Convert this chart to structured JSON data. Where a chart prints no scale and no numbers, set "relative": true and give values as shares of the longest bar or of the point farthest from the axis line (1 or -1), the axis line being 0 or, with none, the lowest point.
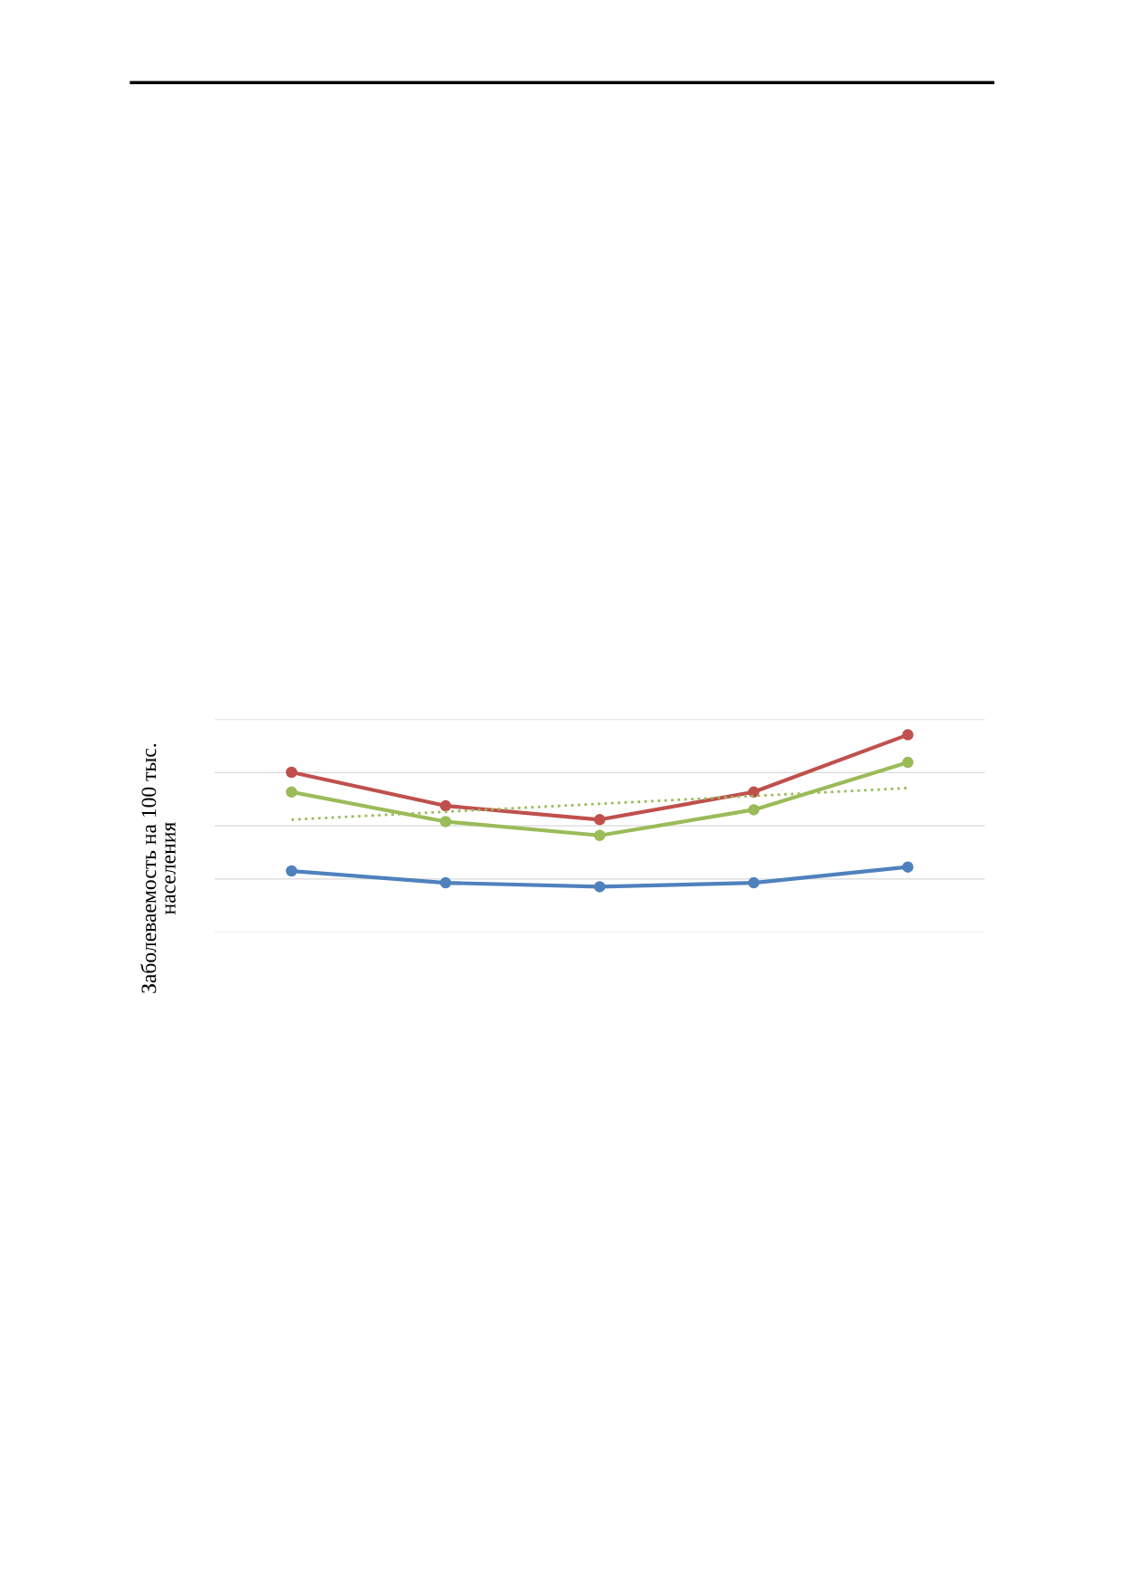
{
  "chart_data": {
    "type": "line",
    "relative": true,
    "ylabel": "Заболеваемость на 100 тыс.\nнаселения",
    "categories": [
      null,
      null,
      null,
      null,
      null
    ],
    "grid": "y",
    "marker": "circle",
    "line_style": "solid",
    "series": [
      {
        "color": "#4f81bd",
        "values": [
          0.31,
          0.25,
          0.23,
          0.25,
          0.33
        ]
      },
      {
        "color": "#c0504d",
        "values": [
          0.81,
          0.64,
          0.57,
          0.71,
          1.0
        ]
      },
      {
        "color": "#9bbb59",
        "values": [
          0.71,
          0.56,
          0.49,
          0.62,
          0.86
        ]
      },
      {
        "color": "#9bbb59",
        "values": [
          0.57,
          0.61,
          0.65,
          0.69,
          0.73
        ],
        "marker": "none",
        "line_style": "dotted"
      }
    ]
  }
}
